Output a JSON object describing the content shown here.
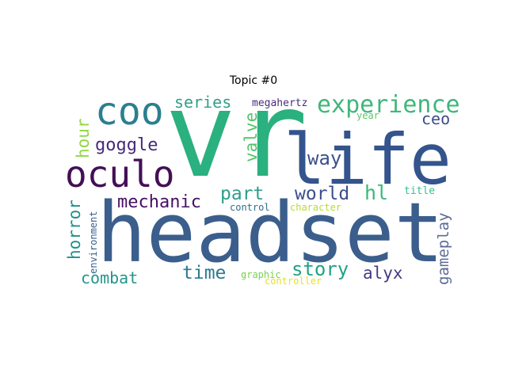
{
  "title": "Topic #0",
  "words": [
    {
      "text": "vr",
      "color": "#2bb07f"
    },
    {
      "text": "headset",
      "color": "#3b5e8c"
    },
    {
      "text": "life",
      "color": "#33548c"
    },
    {
      "text": "oculo",
      "color": "#440f56"
    },
    {
      "text": "coo",
      "color": "#2b7f8e"
    },
    {
      "text": "experience",
      "color": "#3fb77a"
    },
    {
      "text": "series",
      "color": "#30a087"
    },
    {
      "text": "megahertz",
      "color": "#4a2c7d"
    },
    {
      "text": "ceo",
      "color": "#3c4d8a"
    },
    {
      "text": "year",
      "color": "#5bc863"
    },
    {
      "text": "hour",
      "color": "#90d743"
    },
    {
      "text": "goggle",
      "color": "#482979"
    },
    {
      "text": "valve",
      "color": "#52c569"
    },
    {
      "text": "way",
      "color": "#3b528b"
    },
    {
      "text": "part",
      "color": "#2d9f8a"
    },
    {
      "text": "world",
      "color": "#3b4f8a"
    },
    {
      "text": "hl",
      "color": "#3ab97b"
    },
    {
      "text": "title",
      "color": "#31c28e"
    },
    {
      "text": "mechanic",
      "color": "#471063"
    },
    {
      "text": "horror",
      "color": "#21908c"
    },
    {
      "text": "environment",
      "color": "#37618d"
    },
    {
      "text": "control",
      "color": "#2e6e8e"
    },
    {
      "text": "character",
      "color": "#b5de2b"
    },
    {
      "text": "gameplay",
      "color": "#5a6b96"
    },
    {
      "text": "time",
      "color": "#2a7b8e"
    },
    {
      "text": "story",
      "color": "#22a286"
    },
    {
      "text": "alyx",
      "color": "#443a83"
    },
    {
      "text": "combat",
      "color": "#25948b"
    },
    {
      "text": "graphic",
      "color": "#79d151"
    },
    {
      "text": "controller",
      "color": "#e5e419"
    }
  ]
}
